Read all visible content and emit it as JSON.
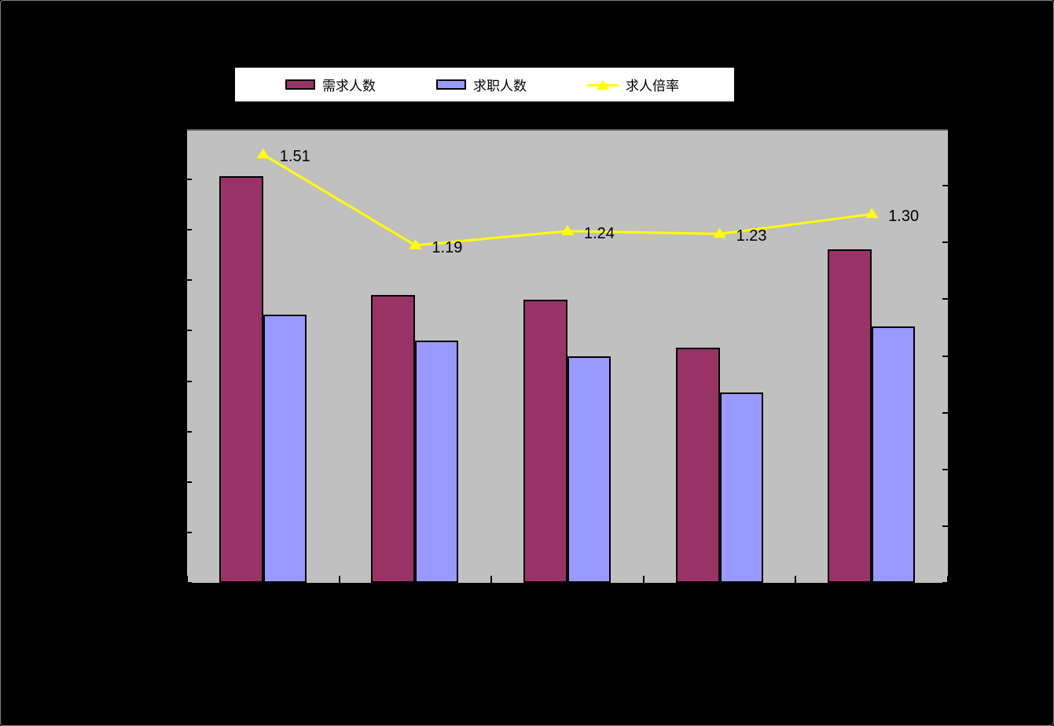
{
  "chart": {
    "background": "#000000",
    "plot_background": "#C0C0C0",
    "outer_border_color": "#808080",
    "plot_top_border_color": "#5a5a5a",
    "title": ""
  },
  "legend": {
    "background": "#FFFFFF",
    "position": "top",
    "items": [
      {
        "label": "需求人数",
        "marker": "filled-rect",
        "color": "#993366"
      },
      {
        "label": "求职人数",
        "marker": "filled-rect",
        "color": "#9999FF"
      },
      {
        "label": "求人倍率",
        "marker": "line-with-triangle",
        "color": "#FFFF00"
      }
    ]
  },
  "chart_data": {
    "type": "bar",
    "subtype": "clustered-bars-with-line-combo",
    "title": "",
    "xlabel": "",
    "ylabel": "",
    "grid": "off",
    "legend_position": "top",
    "categories": [
      "",
      "",
      "",
      "",
      ""
    ],
    "x_axis": {
      "categories_count": 5,
      "tick_labels_visible": false
    },
    "left_axis": {
      "min": 0,
      "max": 9,
      "step": 1,
      "tick_labels_visible": false,
      "note": "axis tick labels are not visible (black on black); bar values are expressed in gridline units read off the 9 unlabeled divisions"
    },
    "right_axis": {
      "min": 0,
      "max": 1.6,
      "step": 0.2,
      "tick_labels_visible": false
    },
    "series": [
      {
        "name": "需求人数",
        "type": "bar",
        "axis": "left",
        "color": "#993366",
        "values": [
          8.06,
          5.71,
          5.61,
          4.66,
          6.61
        ]
      },
      {
        "name": "求职人数",
        "type": "bar",
        "axis": "left",
        "color": "#9999FF",
        "values": [
          5.32,
          4.8,
          4.5,
          3.78,
          5.09
        ]
      },
      {
        "name": "求人倍率",
        "type": "line",
        "axis": "right",
        "color": "#FFFF00",
        "marker": "triangle",
        "values": [
          1.51,
          1.19,
          1.24,
          1.23,
          1.3
        ],
        "data_labels": [
          "1.51",
          "1.19",
          "1.24",
          "1.23",
          "1.30"
        ]
      }
    ]
  }
}
